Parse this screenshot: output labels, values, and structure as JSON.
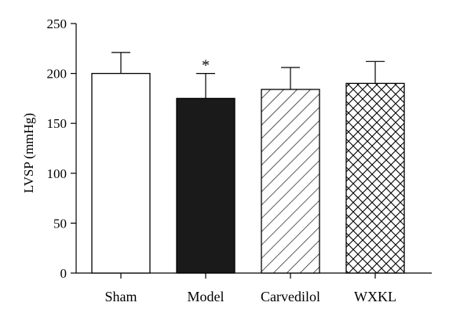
{
  "chart_data": {
    "type": "bar",
    "ylabel": "LVSP (mmHg)",
    "xlabel": "",
    "title": "",
    "ylim": [
      0,
      250
    ],
    "yticks": [
      0,
      50,
      100,
      150,
      200,
      250
    ],
    "categories": [
      "Sham",
      "Model",
      "Carvedilol",
      "WXKL"
    ],
    "values": [
      200,
      175,
      184,
      190
    ],
    "errors": [
      21,
      25,
      22,
      22
    ],
    "fills": [
      "none",
      "solid-black",
      "diagonal-hatch",
      "cross-hatch"
    ],
    "annotations": [
      {
        "category": "Model",
        "text": "*"
      }
    ],
    "grid": false,
    "legend": "none"
  }
}
